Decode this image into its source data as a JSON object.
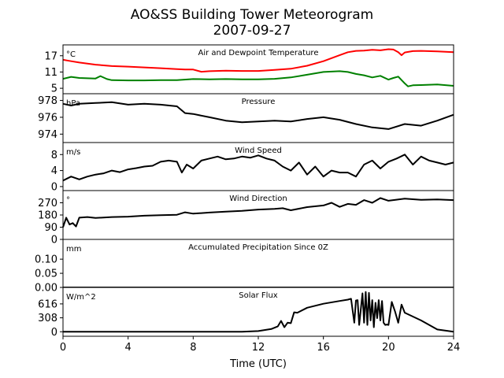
{
  "figure": {
    "title_line1": "AO&SS Building Tower Meteorogram",
    "title_line2": "2007-09-27",
    "xlabel": "Time (UTC)"
  },
  "chart_data": [
    {
      "type": "line",
      "title": "Air and Dewpoint Temperature",
      "unit_label": "°C",
      "ylim": [
        3,
        21
      ],
      "yticks": [
        5,
        11,
        17
      ],
      "xlim": [
        0,
        24
      ],
      "xticks": [
        0,
        4,
        8,
        12,
        16,
        20,
        24
      ],
      "series": [
        {
          "color": "#ff0000",
          "x": [
            0,
            0.5,
            1,
            2,
            3,
            4,
            5,
            6,
            7,
            7.5,
            8,
            8.5,
            9,
            10,
            11,
            12,
            13,
            14,
            15,
            16,
            17,
            17.5,
            18,
            18.5,
            19,
            19.5,
            20,
            20.3,
            20.6,
            20.8,
            21,
            21.5,
            22,
            23,
            24
          ],
          "y": [
            15.5,
            15,
            14.5,
            13.7,
            13.2,
            13.0,
            12.7,
            12.4,
            12.1,
            11.9,
            11.9,
            11.1,
            11.3,
            11.5,
            11.4,
            11.4,
            11.8,
            12.2,
            13.3,
            15.0,
            17.2,
            18.3,
            18.8,
            18.9,
            19.2,
            19.0,
            19.4,
            19.3,
            18.3,
            17.2,
            18.2,
            18.7,
            18.8,
            18.6,
            18.3
          ]
        },
        {
          "color": "#008000",
          "x": [
            0,
            0.5,
            1,
            2,
            2.3,
            2.7,
            3,
            4,
            5,
            6,
            7,
            8,
            9,
            10,
            11,
            12,
            13,
            14,
            15,
            16,
            17,
            17.5,
            18,
            18.5,
            19,
            19.5,
            20,
            20.3,
            20.6,
            21,
            21.2,
            21.5,
            22,
            23,
            24
          ],
          "y": [
            8.5,
            9.2,
            8.8,
            8.6,
            9.5,
            8.4,
            8.0,
            7.9,
            7.9,
            8.0,
            8.0,
            8.4,
            8.3,
            8.4,
            8.3,
            8.3,
            8.5,
            9.0,
            10.0,
            11.0,
            11.3,
            11.0,
            10.3,
            9.8,
            9.0,
            9.6,
            8.2,
            8.8,
            9.3,
            6.8,
            5.7,
            6.1,
            6.2,
            6.4,
            5.9
          ]
        }
      ]
    },
    {
      "type": "line",
      "title": "Pressure",
      "unit_label": "hPa",
      "ylim": [
        973.0,
        978.8
      ],
      "yticks": [
        974,
        976,
        978
      ],
      "xlim": [
        0,
        24
      ],
      "xticks": [
        0,
        4,
        8,
        12,
        16,
        20,
        24
      ],
      "series": [
        {
          "color": "#000000",
          "x": [
            0,
            0.5,
            1,
            2,
            3,
            4,
            5,
            6,
            7,
            7.5,
            8,
            9,
            10,
            11,
            12,
            13,
            14,
            15,
            16,
            17,
            18,
            19,
            20,
            21,
            22,
            23,
            24
          ],
          "y": [
            977.6,
            977.4,
            977.6,
            977.7,
            977.8,
            977.5,
            977.6,
            977.5,
            977.3,
            976.5,
            976.4,
            976.0,
            975.6,
            975.4,
            975.5,
            975.6,
            975.5,
            975.8,
            976.0,
            975.7,
            975.2,
            974.8,
            974.6,
            975.2,
            975.0,
            975.6,
            976.3
          ]
        }
      ]
    },
    {
      "type": "line",
      "title": "Wind Speed",
      "unit_label": "m/s",
      "ylim": [
        -1,
        11
      ],
      "yticks": [
        0,
        4,
        8
      ],
      "xlim": [
        0,
        24
      ],
      "xticks": [
        0,
        4,
        8,
        12,
        16,
        20,
        24
      ],
      "series": [
        {
          "color": "#000000",
          "x": [
            0,
            0.5,
            1,
            1.5,
            2,
            2.5,
            3,
            3.5,
            4,
            4.5,
            5,
            5.5,
            6,
            6.5,
            7,
            7.3,
            7.6,
            8,
            8.5,
            9,
            9.5,
            10,
            10.5,
            11,
            11.5,
            12,
            12.5,
            13,
            13.5,
            14,
            14.5,
            15,
            15.5,
            16,
            16.5,
            17,
            17.5,
            18,
            18.5,
            19,
            19.5,
            20,
            20.5,
            21,
            21.5,
            22,
            22.5,
            23,
            23.5,
            24
          ],
          "y": [
            1.5,
            2.5,
            1.8,
            2.5,
            3.0,
            3.3,
            4.0,
            3.6,
            4.3,
            4.6,
            5.0,
            5.2,
            6.2,
            6.5,
            6.2,
            3.5,
            5.5,
            4.5,
            6.5,
            7.0,
            7.5,
            6.8,
            7.0,
            7.5,
            7.2,
            7.8,
            7.0,
            6.5,
            5.0,
            4.0,
            6.0,
            3.0,
            5.0,
            2.5,
            4.0,
            3.5,
            3.5,
            2.5,
            5.5,
            6.5,
            4.5,
            6.2,
            7.0,
            8.0,
            5.5,
            7.5,
            6.5,
            6.0,
            5.5,
            6.0
          ]
        }
      ]
    },
    {
      "type": "line",
      "title": "Wind Direction",
      "unit_label": "°",
      "ylim": [
        0,
        360
      ],
      "yticks": [
        0,
        90,
        180,
        270
      ],
      "xlim": [
        0,
        24
      ],
      "xticks": [
        0,
        4,
        8,
        12,
        16,
        20,
        24
      ],
      "series": [
        {
          "color": "#000000",
          "x": [
            0,
            0.2,
            0.4,
            0.6,
            0.8,
            1,
            1.5,
            2,
            3,
            4,
            5,
            6,
            7,
            7.5,
            8,
            9,
            10,
            11,
            12,
            13,
            13.5,
            14,
            15,
            16,
            16.5,
            17,
            17.5,
            18,
            18.5,
            19,
            19.5,
            20,
            21,
            22,
            23,
            24
          ],
          "y": [
            90,
            160,
            110,
            120,
            95,
            160,
            165,
            158,
            165,
            168,
            175,
            178,
            182,
            200,
            190,
            198,
            205,
            210,
            220,
            225,
            230,
            215,
            238,
            250,
            270,
            240,
            262,
            255,
            290,
            270,
            305,
            285,
            300,
            292,
            295,
            290
          ]
        }
      ]
    },
    {
      "type": "line",
      "title": "Accumulated Precipitation Since 0Z",
      "unit_label": "mm",
      "ylim": [
        0,
        0.17
      ],
      "yticks": [
        0.0,
        0.05,
        0.1
      ],
      "ytick_labels": [
        "0.00",
        "0.05",
        "0.10"
      ],
      "xlim": [
        0,
        24
      ],
      "xticks": [
        0,
        4,
        8,
        12,
        16,
        20,
        24
      ],
      "series": [
        {
          "color": "#000000",
          "x": [
            0,
            24
          ],
          "y": [
            0,
            0
          ]
        }
      ]
    },
    {
      "type": "line",
      "title": "Solar Flux",
      "unit_label": "W/m^2",
      "ylim": [
        -100,
        980
      ],
      "yticks": [
        0,
        308,
        616
      ],
      "xlim": [
        0,
        24
      ],
      "xticks": [
        0,
        4,
        8,
        12,
        16,
        20,
        24
      ],
      "xticklabels": [
        "0",
        "4",
        "8",
        "12",
        "16",
        "20",
        "24"
      ],
      "series": [
        {
          "color": "#000000",
          "x": [
            0,
            11,
            12,
            12.8,
            13.2,
            13.4,
            13.6,
            13.8,
            14.0,
            14.2,
            14.4,
            15,
            16,
            17,
            17.5,
            17.7,
            17.9,
            18.0,
            18.1,
            18.2,
            18.4,
            18.5,
            18.6,
            18.7,
            18.8,
            18.9,
            19.0,
            19.1,
            19.2,
            19.3,
            19.4,
            19.5,
            19.6,
            19.7,
            19.8,
            19.9,
            20.0,
            20.2,
            20.4,
            20.6,
            20.8,
            21,
            22,
            23,
            24
          ],
          "y": [
            0,
            0,
            15,
            60,
            120,
            240,
            100,
            200,
            190,
            430,
            420,
            530,
            620,
            680,
            710,
            730,
            200,
            690,
            700,
            150,
            850,
            200,
            880,
            150,
            860,
            250,
            700,
            100,
            640,
            300,
            700,
            250,
            680,
            200,
            150,
            160,
            150,
            660,
            450,
            200,
            600,
            420,
            250,
            50,
            0
          ]
        }
      ]
    }
  ]
}
